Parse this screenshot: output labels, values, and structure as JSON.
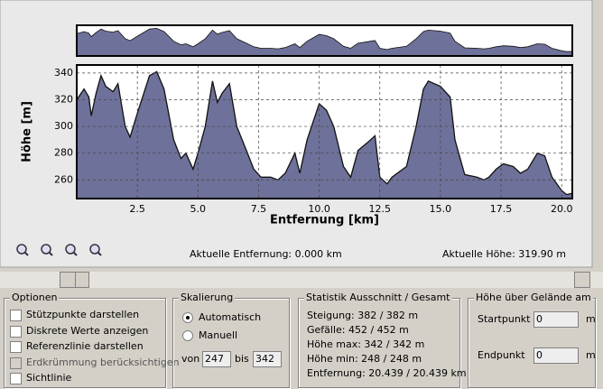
{
  "chart_data": {
    "type": "area",
    "xlabel": "Entfernung [km]",
    "ylabel": "Höhe [m]",
    "color": "#6e7199",
    "line_color": "#111111",
    "x": [
      0,
      0.3,
      0.5,
      0.6,
      0.8,
      1.0,
      1.2,
      1.5,
      1.7,
      2.0,
      2.2,
      2.5,
      3.0,
      3.3,
      3.6,
      4.0,
      4.3,
      4.5,
      4.8,
      5.0,
      5.3,
      5.6,
      5.8,
      6.0,
      6.3,
      6.6,
      7.0,
      7.3,
      7.6,
      8.0,
      8.3,
      8.6,
      9.0,
      9.2,
      9.5,
      10.0,
      10.3,
      10.6,
      11.0,
      11.3,
      11.6,
      12.0,
      12.3,
      12.5,
      12.8,
      13.0,
      13.3,
      13.6,
      14.0,
      14.3,
      14.5,
      15.0,
      15.4,
      15.6,
      16.0,
      16.5,
      16.8,
      17.0,
      17.3,
      17.6,
      18.0,
      18.3,
      18.6,
      19.0,
      19.3,
      19.6,
      20.0,
      20.2,
      20.439
    ],
    "values": [
      320,
      328,
      322,
      308,
      325,
      338,
      330,
      326,
      332,
      300,
      292,
      310,
      338,
      341,
      328,
      290,
      276,
      280,
      268,
      280,
      300,
      334,
      318,
      325,
      332,
      300,
      282,
      268,
      262,
      262,
      260,
      265,
      280,
      265,
      290,
      317,
      312,
      300,
      270,
      262,
      282,
      288,
      293,
      262,
      257,
      262,
      266,
      270,
      300,
      328,
      334,
      330,
      322,
      290,
      264,
      262,
      260,
      262,
      268,
      272,
      270,
      265,
      268,
      280,
      278,
      262,
      252,
      249,
      250
    ],
    "xlim": [
      0,
      20.439
    ],
    "ylim": [
      246,
      346
    ],
    "xticks": [
      2.5,
      {
        "value": 5,
        "label": "5.0"
      },
      7.5,
      {
        "value": 10,
        "label": "10.0"
      },
      12.5,
      {
        "value": 15,
        "label": "15.0"
      },
      17.5,
      {
        "value": 20,
        "label": "20.0"
      }
    ],
    "yticks": [
      260,
      280,
      300,
      320,
      340
    ],
    "grid": true
  },
  "status": {
    "distance": "Aktuelle Entfernung: 0.000 km",
    "height": "Aktuelle Höhe: 319.90 m"
  },
  "options": {
    "title": "Optionen",
    "items": [
      "Stützpunkte darstellen",
      "Diskrete Werte anzeigen",
      "Referenzlinie darstellen",
      "Erdkrümmung berücksichtigen",
      "Sichtlinie"
    ]
  },
  "scaling": {
    "title": "Skalierung",
    "automatic": "Automatisch",
    "manual": "Manuell",
    "from_label": "von",
    "from_value": "247",
    "to_label": "bis",
    "to_value": "342"
  },
  "stats": {
    "title": "Statistik   Ausschnitt / Gesamt",
    "rows": [
      "Steigung: 382 / 382 m",
      "Gefälle: 452 / 452 m",
      "Höhe max: 342 / 342 m",
      "Höhe min: 248 / 248 m",
      "Entfernung: 20.439 / 20.439 km"
    ]
  },
  "height_above": {
    "title": "Höhe über Gelände am",
    "start_label": "Startpunkt",
    "start_value": "0",
    "start_unit": "m",
    "end_label": "Endpunkt",
    "end_value": "0",
    "end_unit": "m"
  }
}
